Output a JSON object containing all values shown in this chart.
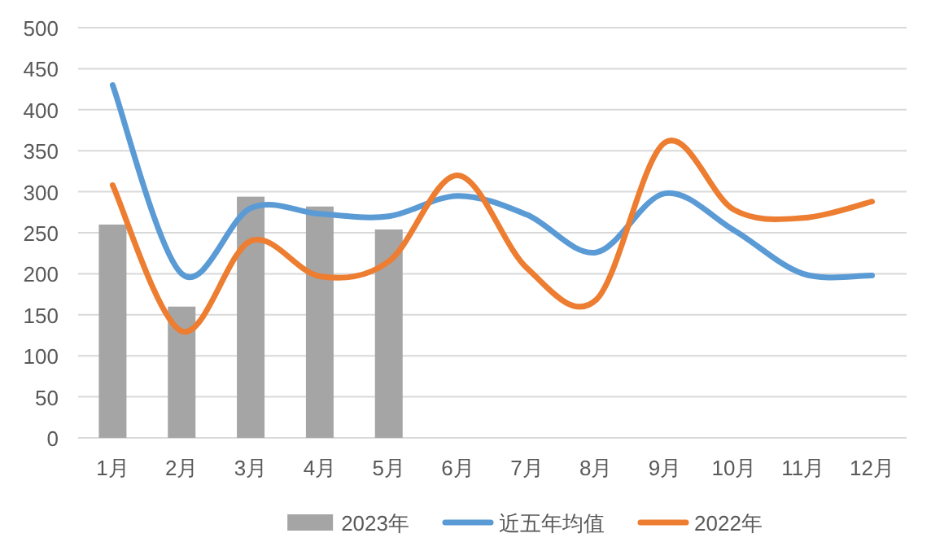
{
  "chart_data": {
    "type": "bar",
    "categories": [
      "1月",
      "2月",
      "3月",
      "4月",
      "5月",
      "6月",
      "7月",
      "8月",
      "9月",
      "10月",
      "11月",
      "12月"
    ],
    "series": [
      {
        "name": "2023年",
        "color": "#a5a5a5",
        "values": [
          260,
          160,
          294,
          282,
          254,
          null,
          null,
          null,
          null,
          null,
          null,
          null
        ]
      },
      {
        "name": "近五年均值",
        "type": "line",
        "color": "#5b9bd5",
        "values": [
          430,
          200,
          280,
          273,
          270,
          295,
          272,
          226,
          298,
          253,
          200,
          198
        ]
      },
      {
        "name": "2022年",
        "type": "line",
        "color": "#ed7d31",
        "values": [
          308,
          130,
          240,
          197,
          215,
          320,
          207,
          168,
          360,
          278,
          268,
          288
        ]
      }
    ],
    "ylim": [
      0,
      500
    ],
    "yticks": [
      0,
      50,
      100,
      150,
      200,
      250,
      300,
      350,
      400,
      450,
      500
    ],
    "grid": "y",
    "legend": "bottom"
  }
}
